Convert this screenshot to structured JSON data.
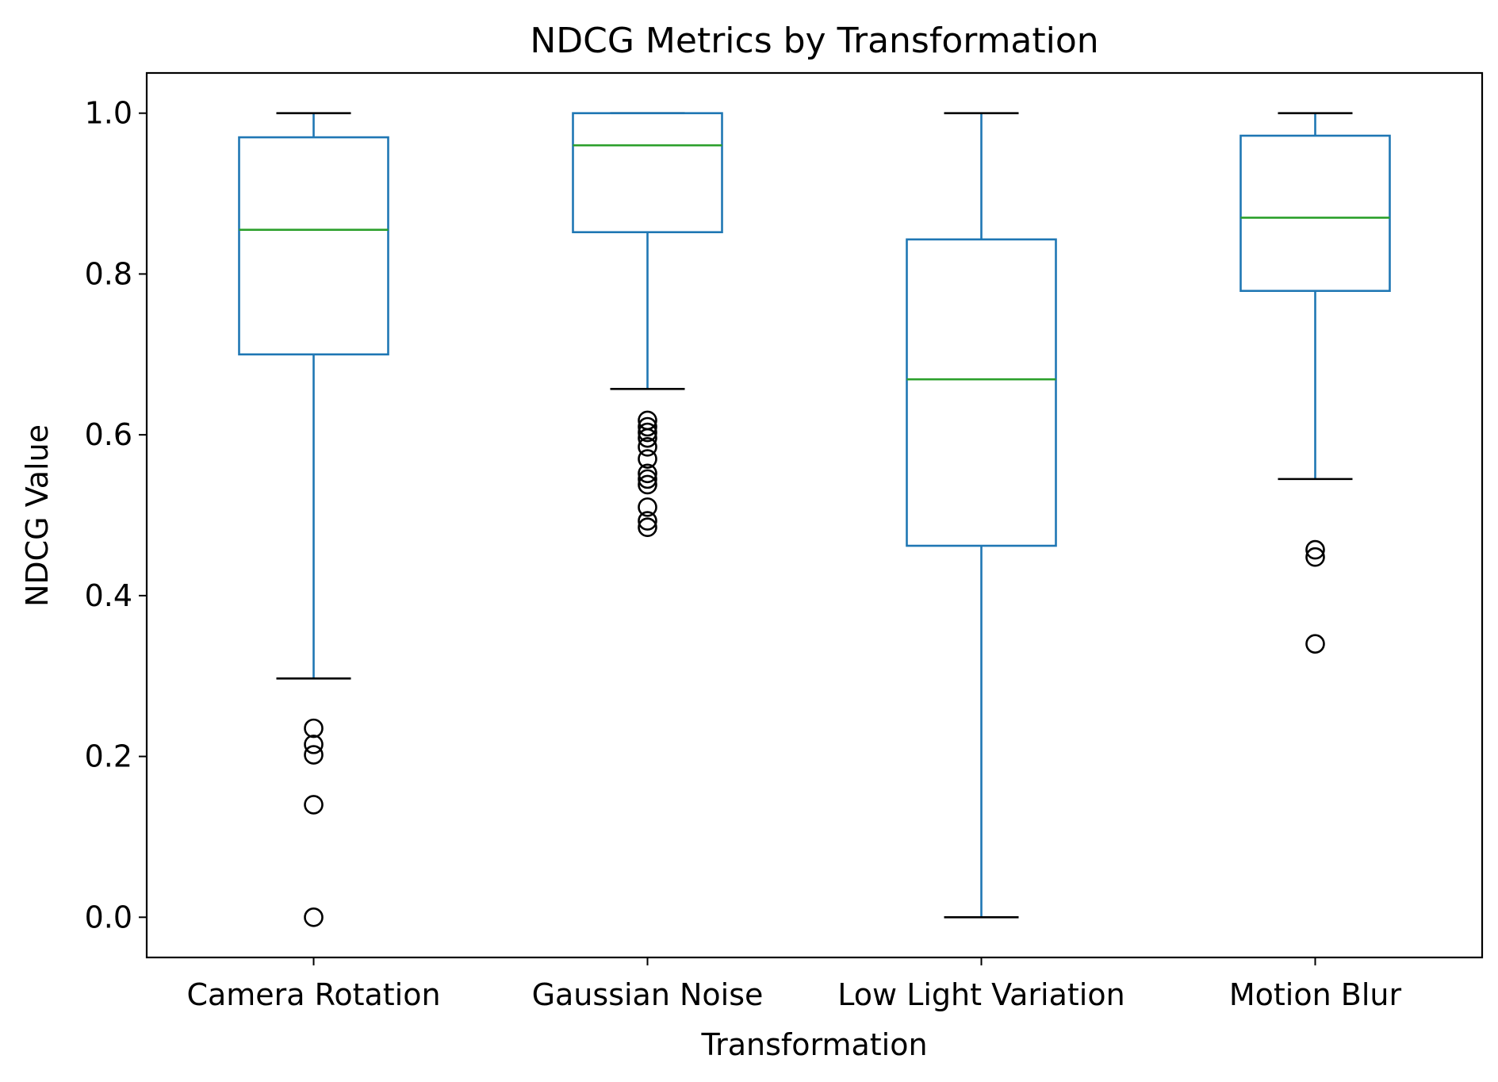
{
  "chart_data": {
    "type": "box",
    "title": "NDCG Metrics by Transformation",
    "xlabel": "Transformation",
    "ylabel": "NDCG Value",
    "ylim": [
      -0.05,
      1.05
    ],
    "yticks": [
      "0.0",
      "0.2",
      "0.4",
      "0.6",
      "0.8",
      "1.0"
    ],
    "ytick_values": [
      0.0,
      0.2,
      0.4,
      0.6,
      0.8,
      1.0
    ],
    "grid": false,
    "colors": {
      "box": "#1f77b4",
      "median": "#2ca02c",
      "caps": "#000000",
      "fliers": "#000000"
    },
    "categories": [
      "Camera Rotation",
      "Gaussian Noise",
      "Low Light Variation",
      "Motion Blur"
    ],
    "boxes": [
      {
        "name": "Camera Rotation",
        "whisker_low": 0.297,
        "q1": 0.7,
        "median": 0.855,
        "q3": 0.97,
        "whisker_high": 1.0,
        "outliers": [
          0.235,
          0.215,
          0.202,
          0.14,
          0.0
        ]
      },
      {
        "name": "Gaussian Noise",
        "whisker_low": 0.657,
        "q1": 0.852,
        "median": 0.96,
        "q3": 1.0,
        "whisker_high": 1.0,
        "outliers": [
          0.618,
          0.61,
          0.603,
          0.596,
          0.585,
          0.57,
          0.552,
          0.545,
          0.538,
          0.51,
          0.493,
          0.485
        ]
      },
      {
        "name": "Low Light Variation",
        "whisker_low": 0.0,
        "q1": 0.462,
        "median": 0.669,
        "q3": 0.843,
        "whisker_high": 1.0,
        "outliers": []
      },
      {
        "name": "Motion Blur",
        "whisker_low": 0.545,
        "q1": 0.779,
        "median": 0.87,
        "q3": 0.972,
        "whisker_high": 1.0,
        "outliers": [
          0.457,
          0.448,
          0.34
        ]
      }
    ]
  }
}
